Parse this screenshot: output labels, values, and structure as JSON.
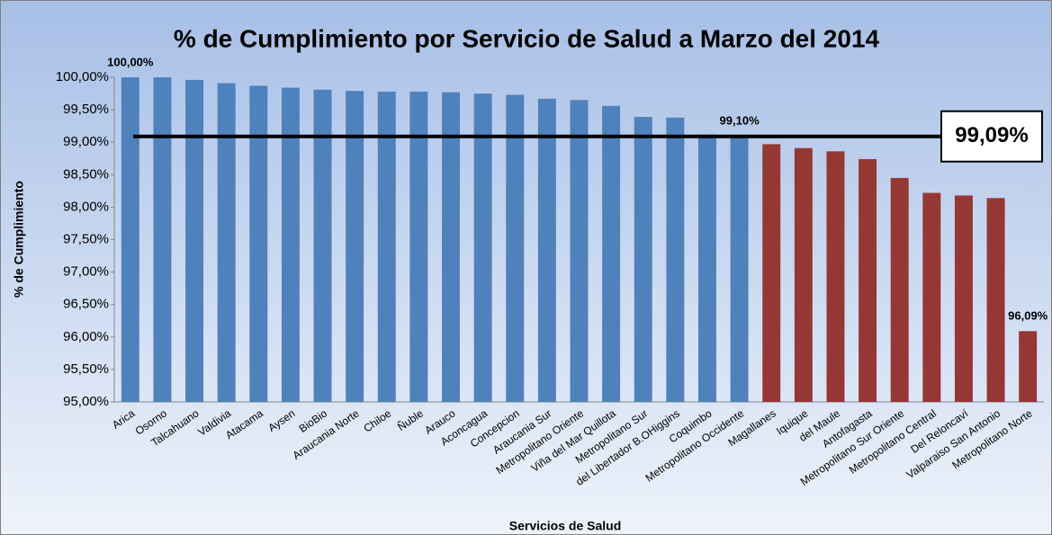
{
  "chart_data": {
    "type": "bar",
    "title": "% de Cumplimiento por Servicio de Salud a Marzo del 2014",
    "y_label": "% de Cumplimiento",
    "x_label": "Servicios de Salud",
    "categories": [
      "Arica",
      "Osorno",
      "Talcahuano",
      "Valdivia",
      "Atacama",
      "Aysen",
      "BioBio",
      "Araucania Norte",
      "Chiloe",
      "Ñuble",
      "Arauco",
      "Aconcagua",
      "Concepcion",
      "Araucania Sur",
      "Metropolitano Oriente",
      "Viña del Mar Quillota",
      "Metropolitano Sur",
      "del Libertador B.OHiggins",
      "Coquimbo",
      "Metropolitano Occidente",
      "Magallanes",
      "Iquique",
      "del Maule",
      "Antofagasta",
      "Metropolitano Sur Oriente",
      "Metropolitano Central",
      "Del Reloncaví",
      "Valparaiso San Antonio",
      "Metropolitano Norte"
    ],
    "values": [
      100,
      100,
      99.96,
      99.91,
      99.87,
      99.84,
      99.81,
      99.79,
      99.78,
      99.78,
      99.77,
      99.75,
      99.73,
      99.67,
      99.65,
      99.56,
      99.39,
      99.38,
      99.12,
      99.1,
      98.97,
      98.91,
      98.86,
      98.74,
      98.45,
      98.22,
      98.18,
      98.14,
      96.09
    ],
    "value_labels": [
      "100,00%",
      null,
      null,
      null,
      null,
      null,
      null,
      null,
      null,
      null,
      null,
      null,
      null,
      null,
      null,
      null,
      null,
      null,
      null,
      "99,10%",
      null,
      null,
      null,
      null,
      null,
      null,
      null,
      null,
      "96,09%"
    ],
    "colors": [
      "#4f81bd",
      "#4f81bd",
      "#4f81bd",
      "#4f81bd",
      "#4f81bd",
      "#4f81bd",
      "#4f81bd",
      "#4f81bd",
      "#4f81bd",
      "#4f81bd",
      "#4f81bd",
      "#4f81bd",
      "#4f81bd",
      "#4f81bd",
      "#4f81bd",
      "#4f81bd",
      "#4f81bd",
      "#4f81bd",
      "#4f81bd",
      "#4f81bd",
      "#953735",
      "#953735",
      "#953735",
      "#953735",
      "#953735",
      "#953735",
      "#953735",
      "#953735",
      "#953735"
    ],
    "reference_line": {
      "value": 99.09,
      "label": "99,09%"
    },
    "ylim": [
      95,
      100
    ],
    "yticks": [
      {
        "value": 95,
        "label": "95,00%"
      },
      {
        "value": 95.5,
        "label": "95,50%"
      },
      {
        "value": 96,
        "label": "96,00%"
      },
      {
        "value": 96.5,
        "label": "96,50%"
      },
      {
        "value": 97,
        "label": "97,00%"
      },
      {
        "value": 97.5,
        "label": "97,50%"
      },
      {
        "value": 98,
        "label": "98,00%"
      },
      {
        "value": 98.5,
        "label": "98,50%"
      },
      {
        "value": 99,
        "label": "99,00%"
      },
      {
        "value": 99.5,
        "label": "99,50%"
      },
      {
        "value": 100,
        "label": "100,00%"
      }
    ],
    "grid": false
  }
}
